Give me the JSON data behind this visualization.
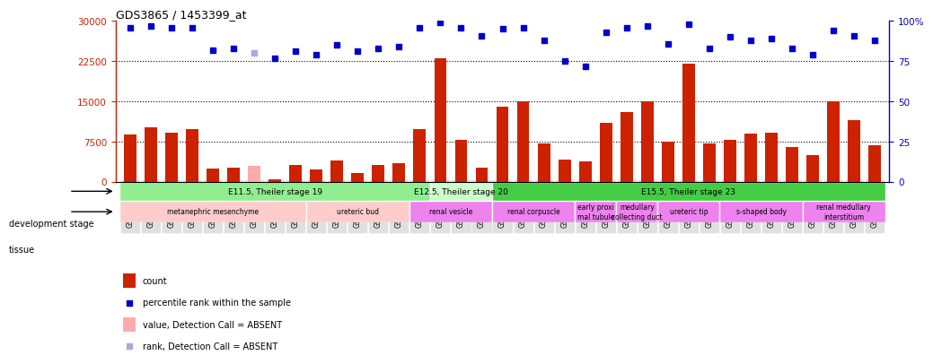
{
  "title": "GDS3865 / 1453399_at",
  "samples": [
    "GSM144610",
    "GSM144611",
    "GSM144612",
    "GSM144613",
    "GSM144614",
    "GSM144615",
    "GSM144616",
    "GSM144617",
    "GSM144618",
    "GSM144619",
    "GSM144620",
    "GSM144621",
    "GSM144585",
    "GSM144586",
    "GSM144587",
    "GSM144588",
    "GSM144589",
    "GSM144590",
    "GSM144591",
    "GSM144592",
    "GSM144593",
    "GSM144594",
    "GSM144595",
    "GSM144596",
    "GSM144597",
    "GSM144598",
    "GSM144599",
    "GSM144600",
    "GSM144601",
    "GSM144602",
    "GSM144603",
    "GSM144604",
    "GSM144605",
    "GSM144606",
    "GSM144607",
    "GSM144608",
    "GSM144609"
  ],
  "counts": [
    8800,
    10200,
    9200,
    9800,
    2400,
    2600,
    3000,
    400,
    3200,
    2300,
    4000,
    1600,
    3100,
    3400,
    9800,
    23000,
    7800,
    2700,
    14000,
    15000,
    7200,
    4200,
    3800,
    11000,
    13000,
    15000,
    7500,
    22000,
    7200,
    7800,
    9000,
    9200,
    6500,
    5000,
    15000,
    11500,
    6800
  ],
  "percentile_ranks": [
    96,
    97,
    96,
    96,
    82,
    83,
    80,
    77,
    81,
    79,
    85,
    81,
    83,
    84,
    96,
    99,
    96,
    91,
    95,
    96,
    88,
    75,
    72,
    93,
    96,
    97,
    86,
    98,
    83,
    90,
    88,
    89,
    83,
    79,
    94,
    91,
    88
  ],
  "absent_bar_indices": [
    6
  ],
  "absent_rank_indices": [
    6
  ],
  "bar_color": "#cc2200",
  "bar_color_absent": "#ffaaaa",
  "rank_color": "#0000cc",
  "rank_color_absent": "#aaaadd",
  "ylim_left": [
    0,
    30000
  ],
  "ylim_right": [
    0,
    100
  ],
  "yticks_left": [
    0,
    7500,
    15000,
    22500,
    30000
  ],
  "ytick_labels_left": [
    "0",
    "7500",
    "15000",
    "22500",
    "30000"
  ],
  "yticks_right": [
    0,
    25,
    50,
    75,
    100
  ],
  "ytick_labels_right": [
    "0",
    "25",
    "50",
    "75",
    "100%"
  ],
  "dev_stages": [
    {
      "label": "E11.5, Theiler stage 19",
      "start": 0,
      "end": 15,
      "color": "#90ee90"
    },
    {
      "label": "E12.5, Theiler stage 20",
      "start": 15,
      "end": 18,
      "color": "#ccffcc"
    },
    {
      "label": "E15.5, Theiler stage 23",
      "start": 18,
      "end": 37,
      "color": "#44cc44"
    }
  ],
  "tissues": [
    {
      "label": "metanephric mesenchyme",
      "start": 0,
      "end": 9,
      "color": "#ffcccc"
    },
    {
      "label": "ureteric bud",
      "start": 9,
      "end": 14,
      "color": "#ffcccc"
    },
    {
      "label": "renal vesicle",
      "start": 14,
      "end": 18,
      "color": "#ee82ee"
    },
    {
      "label": "renal corpuscle",
      "start": 18,
      "end": 22,
      "color": "#ee82ee"
    },
    {
      "label": "early proxi\nmal tubule",
      "start": 22,
      "end": 24,
      "color": "#ee82ee"
    },
    {
      "label": "medullary\ncollecting duct",
      "start": 24,
      "end": 26,
      "color": "#ee82ee"
    },
    {
      "label": "ureteric tip",
      "start": 26,
      "end": 29,
      "color": "#ee82ee"
    },
    {
      "label": "s-shaped body",
      "start": 29,
      "end": 33,
      "color": "#ee82ee"
    },
    {
      "label": "renal medullary\ninterstitium",
      "start": 33,
      "end": 37,
      "color": "#ee82ee"
    }
  ],
  "bg_color": "#ffffff",
  "plot_bg": "#ffffff"
}
